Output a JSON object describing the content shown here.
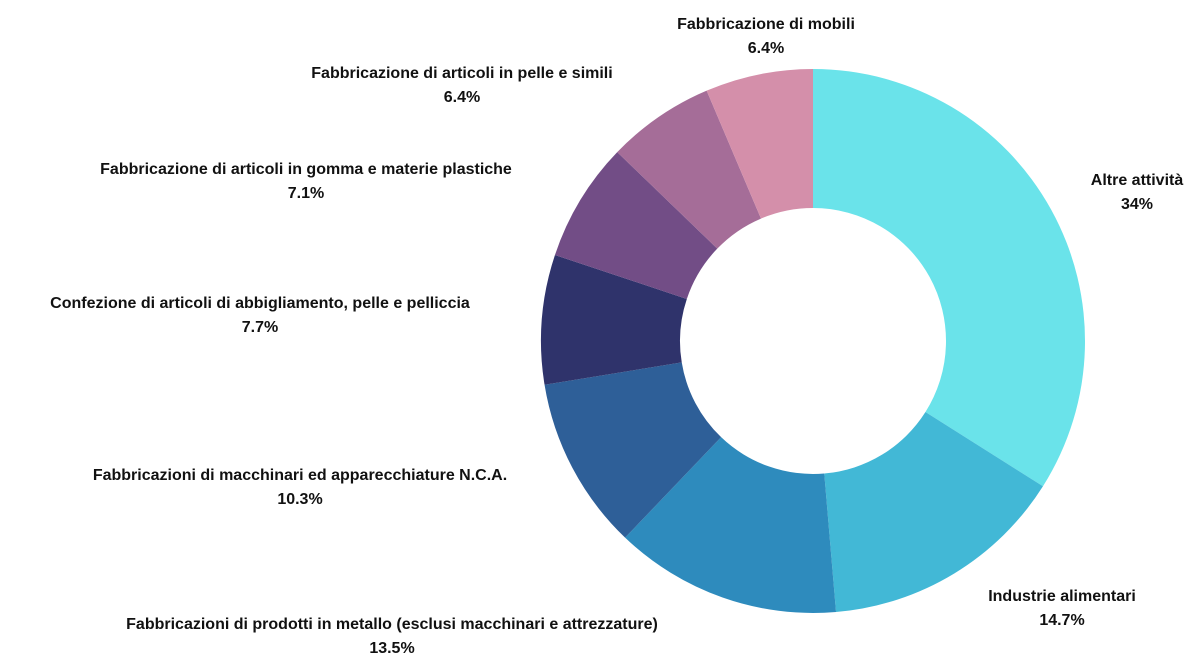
{
  "chart_data": {
    "type": "donut",
    "categories": [
      "Altre attività",
      "Industrie alimentari",
      "Fabbricazioni di prodotti in metallo (esclusi macchinari e attrezzature)",
      "Fabbricazioni di macchinari ed apparecchiature N.C.A.",
      "Confezione di articoli di abbigliamento, pelle e pelliccia",
      "Fabbricazione di articoli in gomma e materie plastiche",
      "Fabbricazione di articoli in pelle e simili",
      "Fabbricazione di mobili"
    ],
    "values": [
      34,
      14.7,
      13.5,
      10.3,
      7.7,
      7.1,
      6.4,
      6.4
    ],
    "value_labels": [
      "34%",
      "14.7%",
      "13.5%",
      "10.3%",
      "7.7%",
      "7.1%",
      "6.4%",
      "6.4%"
    ],
    "colors": [
      "#6ae3ea",
      "#42b8d6",
      "#2e8bbd",
      "#2e5f98",
      "#2f336b",
      "#724d86",
      "#a56d98",
      "#d48faa"
    ]
  }
}
